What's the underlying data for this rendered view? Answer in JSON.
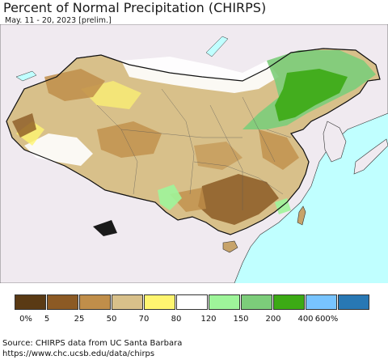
{
  "map": {
    "title": "Percent of Normal Precipitation (CHIRPS)",
    "subtitle": "May. 11 - 20, 2023 [prelim.]",
    "legend": {
      "labels": [
        "0%",
        "5",
        "25",
        "50",
        "70",
        "80",
        "120",
        "150",
        "200",
        "400",
        "600%"
      ],
      "colors": [
        "#5a3a14",
        "#8c5a24",
        "#c08e4a",
        "#d8c08a",
        "#fff570",
        "#ffffff",
        "#9ef59a",
        "#7ccd7a",
        "#3caa14",
        "#78c4ff",
        "#2878b4"
      ]
    },
    "colors": {
      "ocean": "#c0ffff",
      "land": "#f0eaf0",
      "border": "#222222"
    },
    "source": "Source: CHIRPS data from UC Santa Barbara",
    "url": "https://www.chc.ucsb.edu/data/chirps"
  }
}
